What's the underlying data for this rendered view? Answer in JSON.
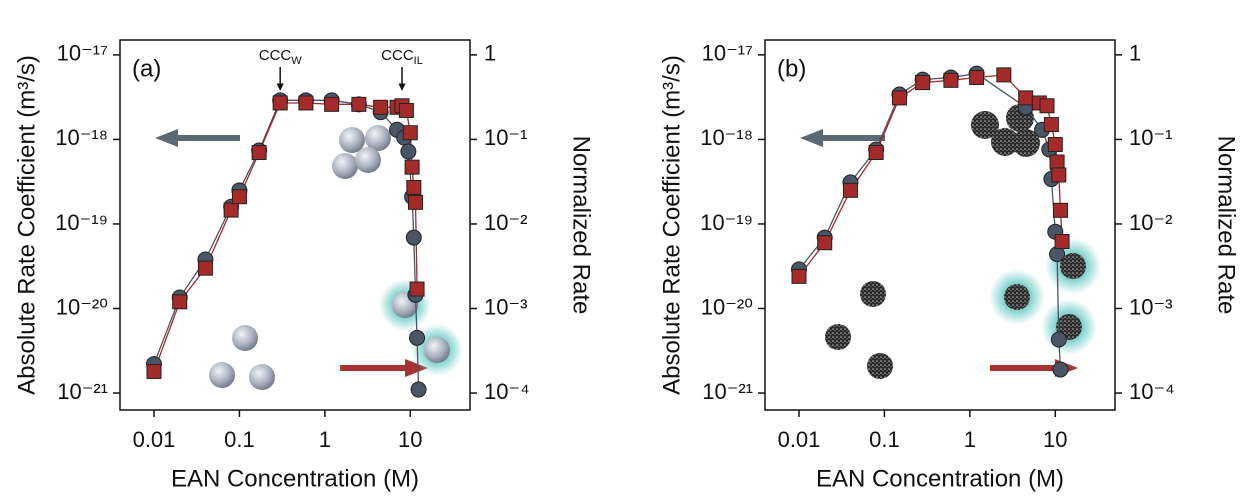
{
  "chart_data": [
    {
      "type": "line",
      "panel_label": "(a)",
      "xlabel": "EAN Concentration (M)",
      "ylabel": "Absolute Rate Coefficient (m³/s)",
      "y2label": "Normalized Rate",
      "log_x": true,
      "log_y": true,
      "xlim": [
        0.004,
        50
      ],
      "xticks": [
        0.01,
        0.1,
        1,
        10
      ],
      "ylim": [
        1.5e-17,
        6.3e-22
      ],
      "yticks": [
        {
          "value": 1e-17,
          "label": "10⁻¹⁷"
        },
        {
          "value": 1e-18,
          "label": "10⁻¹⁸"
        },
        {
          "value": 1e-19,
          "label": "10⁻¹⁹"
        },
        {
          "value": 1e-20,
          "label": "10⁻²⁰"
        },
        {
          "value": 1e-21,
          "label": "10⁻²¹"
        }
      ],
      "y2lim": [
        1.5,
        6.3e-05
      ],
      "y2ticks": [
        1,
        {
          "value": 0.1,
          "label": "10⁻¹"
        },
        {
          "value": 0.01,
          "label": "10⁻²"
        },
        {
          "value": 0.001,
          "label": "10⁻³"
        },
        {
          "value": 0.0001,
          "label": "10⁻⁴"
        }
      ],
      "annotations": [
        {
          "text": "CCC",
          "sub": "W",
          "x": 0.3
        },
        {
          "text": "CCC",
          "sub": "IL",
          "x": 8
        }
      ],
      "series": [
        {
          "color": "#4a5566",
          "marker": "circle",
          "axis": "y",
          "x": [
            0.01,
            0.02,
            0.04,
            0.08,
            0.1,
            0.17,
            0.3,
            0.6,
            1.2,
            2.5,
            4.5,
            7,
            8.5,
            9.5,
            10.5,
            11,
            11.5,
            12,
            12.5
          ],
          "values": [
            2.2e-21,
            1.35e-20,
            3.8e-20,
            1.6e-19,
            2.5e-19,
            7.4e-19,
            2.9e-18,
            2.9e-18,
            2.9e-18,
            2.6e-18,
            2.1e-18,
            1.3e-18,
            1.05e-18,
            7.2e-19,
            2.1e-19,
            6.9e-20,
            1.45e-20,
            4.5e-21,
            1.1e-21
          ]
        },
        {
          "color": "#a52a2a",
          "marker": "square",
          "axis": "y2",
          "x": [
            0.01,
            0.02,
            0.04,
            0.08,
            0.1,
            0.17,
            0.3,
            0.6,
            1.2,
            2.5,
            4.5,
            7,
            8,
            9,
            10,
            10.5,
            11,
            11.5,
            12
          ],
          "values": [
            0.00018,
            0.0012,
            0.003,
            0.0146,
            0.021,
            0.07,
            0.27,
            0.27,
            0.26,
            0.26,
            0.24,
            0.24,
            0.25,
            0.22,
            0.12,
            0.047,
            0.027,
            0.018,
            0.0017
          ]
        }
      ]
    },
    {
      "type": "line",
      "panel_label": "(b)",
      "xlabel": "EAN Concentration (M)",
      "ylabel": "Absolute Rate Coefficient (m³/s)",
      "y2label": "Normalized Rate",
      "log_x": true,
      "log_y": true,
      "xlim": [
        0.004,
        50
      ],
      "xticks": [
        0.01,
        0.1,
        1,
        10
      ],
      "ylim": [
        1.5e-17,
        6.3e-22
      ],
      "yticks": [
        {
          "value": 1e-17,
          "label": "10⁻¹⁷"
        },
        {
          "value": 1e-18,
          "label": "10⁻¹⁸"
        },
        {
          "value": 1e-19,
          "label": "10⁻¹⁹"
        },
        {
          "value": 1e-20,
          "label": "10⁻²⁰"
        },
        {
          "value": 1e-21,
          "label": "10⁻²¹"
        }
      ],
      "y2lim": [
        1.5,
        6.3e-05
      ],
      "y2ticks": [
        1,
        {
          "value": 0.1,
          "label": "10⁻¹"
        },
        {
          "value": 0.01,
          "label": "10⁻²"
        },
        {
          "value": 0.001,
          "label": "10⁻³"
        },
        {
          "value": 0.0001,
          "label": "10⁻⁴"
        }
      ],
      "series": [
        {
          "color": "#4a5566",
          "marker": "circle",
          "axis": "y",
          "x": [
            0.01,
            0.02,
            0.04,
            0.08,
            0.15,
            0.28,
            0.6,
            1.2,
            4.5,
            7,
            8.5,
            9,
            10,
            10.5,
            11,
            11.5
          ],
          "values": [
            2.9e-20,
            6.9e-20,
            3.1e-19,
            7.6e-19,
            3.4e-18,
            5.1e-18,
            5.4e-18,
            6e-18,
            2.4e-18,
            1.3e-18,
            7.6e-19,
            3.4e-19,
            8.1e-20,
            4.4e-20,
            4.3e-21,
            1.9e-21
          ]
        },
        {
          "color": "#a52a2a",
          "marker": "square",
          "axis": "y2",
          "x": [
            0.01,
            0.02,
            0.04,
            0.08,
            0.15,
            0.28,
            0.6,
            1.2,
            2.5,
            4.5,
            6.5,
            8,
            9,
            10,
            10.5,
            11,
            11.5,
            12
          ],
          "values": [
            0.0024,
            0.006,
            0.025,
            0.07,
            0.31,
            0.47,
            0.5,
            0.54,
            0.58,
            0.31,
            0.27,
            0.25,
            0.15,
            0.087,
            0.054,
            0.038,
            0.0145,
            0.0062
          ]
        }
      ]
    }
  ]
}
